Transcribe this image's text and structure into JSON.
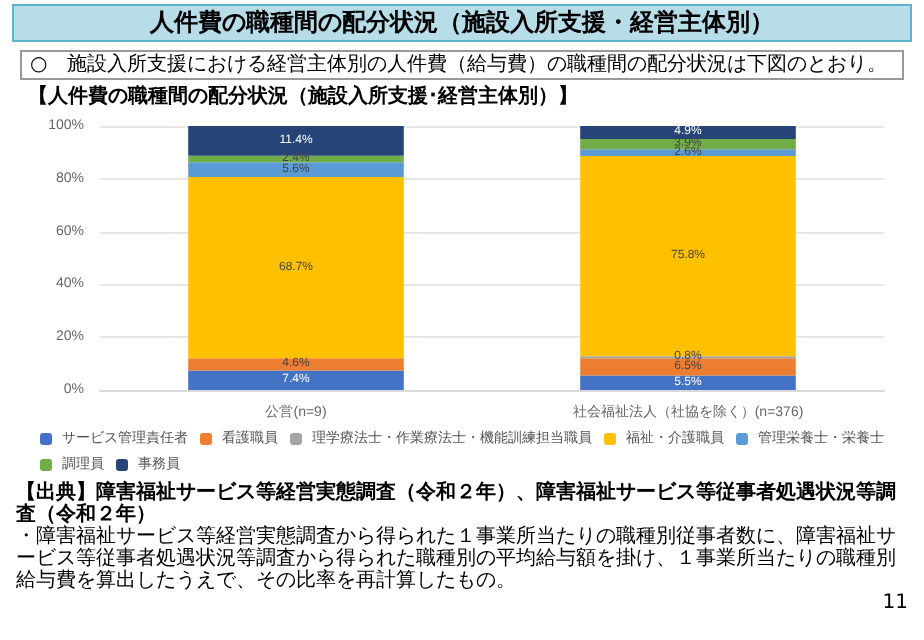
{
  "chart_data": {
    "type": "bar",
    "stacked": true,
    "title": "人件費の職種間の配分状況（施設入所支援・経営主体別）",
    "subtitle": "○　施設入所支援における経営主体別の人件費（給与費）の職種間の配分状況は下図のとおり。",
    "annotations": [
      "【人件費の職種間の配分状況（施設入所支援･経営主体別）】",
      "【出典】障害福祉サービス等経営実態調査（令和２年）、障害福祉サービス等従事者処遇状況等調査（令和２年）",
      "・障害福祉サービス等経営実態調査から得られた１事業所当たりの職種別従事者数に、障害福祉サービス等従事者処遇状況等調査から得られた職種別の平均給与額を掛け、１事業所当たりの職種別給与費を算出したうえで、その比率を再計算したもの。",
      "11"
    ],
    "categories": [
      "公営(n=9)",
      "社会福祉法人（社協を除く）(n=376)"
    ],
    "series": [
      {
        "name": "サービス管理責任者",
        "color": "#4472c4",
        "values": [
          7.4,
          5.5
        ],
        "value_labels": [
          "7.4%",
          "5.5%"
        ]
      },
      {
        "name": "看護職員",
        "color": "#ed7d31",
        "values": [
          4.6,
          6.5
        ],
        "value_labels": [
          "4.6%",
          "6.5%"
        ]
      },
      {
        "name": "理学療法士・作業療法士・機能訓練担当職員",
        "color": "#a5a5a5",
        "values": [
          0,
          0.8
        ],
        "value_labels": [
          null,
          "0.8%"
        ]
      },
      {
        "name": "福祉・介護職員",
        "color": "#ffc000",
        "values": [
          68.7,
          75.8
        ],
        "value_labels": [
          "68.7%",
          "75.8%"
        ]
      },
      {
        "name": "管理栄養士・栄養士",
        "color": "#5b9bd5",
        "values": [
          5.6,
          2.6
        ],
        "value_labels": [
          "5.6%",
          "2.6%"
        ]
      },
      {
        "name": "調理員",
        "color": "#70ad47",
        "values": [
          2.4,
          3.9
        ],
        "value_labels": [
          "2.4%",
          "3.9%"
        ]
      },
      {
        "name": "事務員",
        "color": "#264478",
        "values": [
          11.4,
          4.9
        ],
        "value_labels": [
          "11.4%",
          "4.9%"
        ]
      }
    ],
    "ylim": [
      0,
      100
    ],
    "yticks": [
      {
        "value": 0,
        "label": "0%"
      },
      {
        "value": 20,
        "label": "20%"
      },
      {
        "value": 40,
        "label": "40%"
      },
      {
        "value": 60,
        "label": "60%"
      },
      {
        "value": 80,
        "label": "80%"
      },
      {
        "value": 100,
        "label": "100%"
      }
    ],
    "grid": "y",
    "legend": "bottom"
  }
}
